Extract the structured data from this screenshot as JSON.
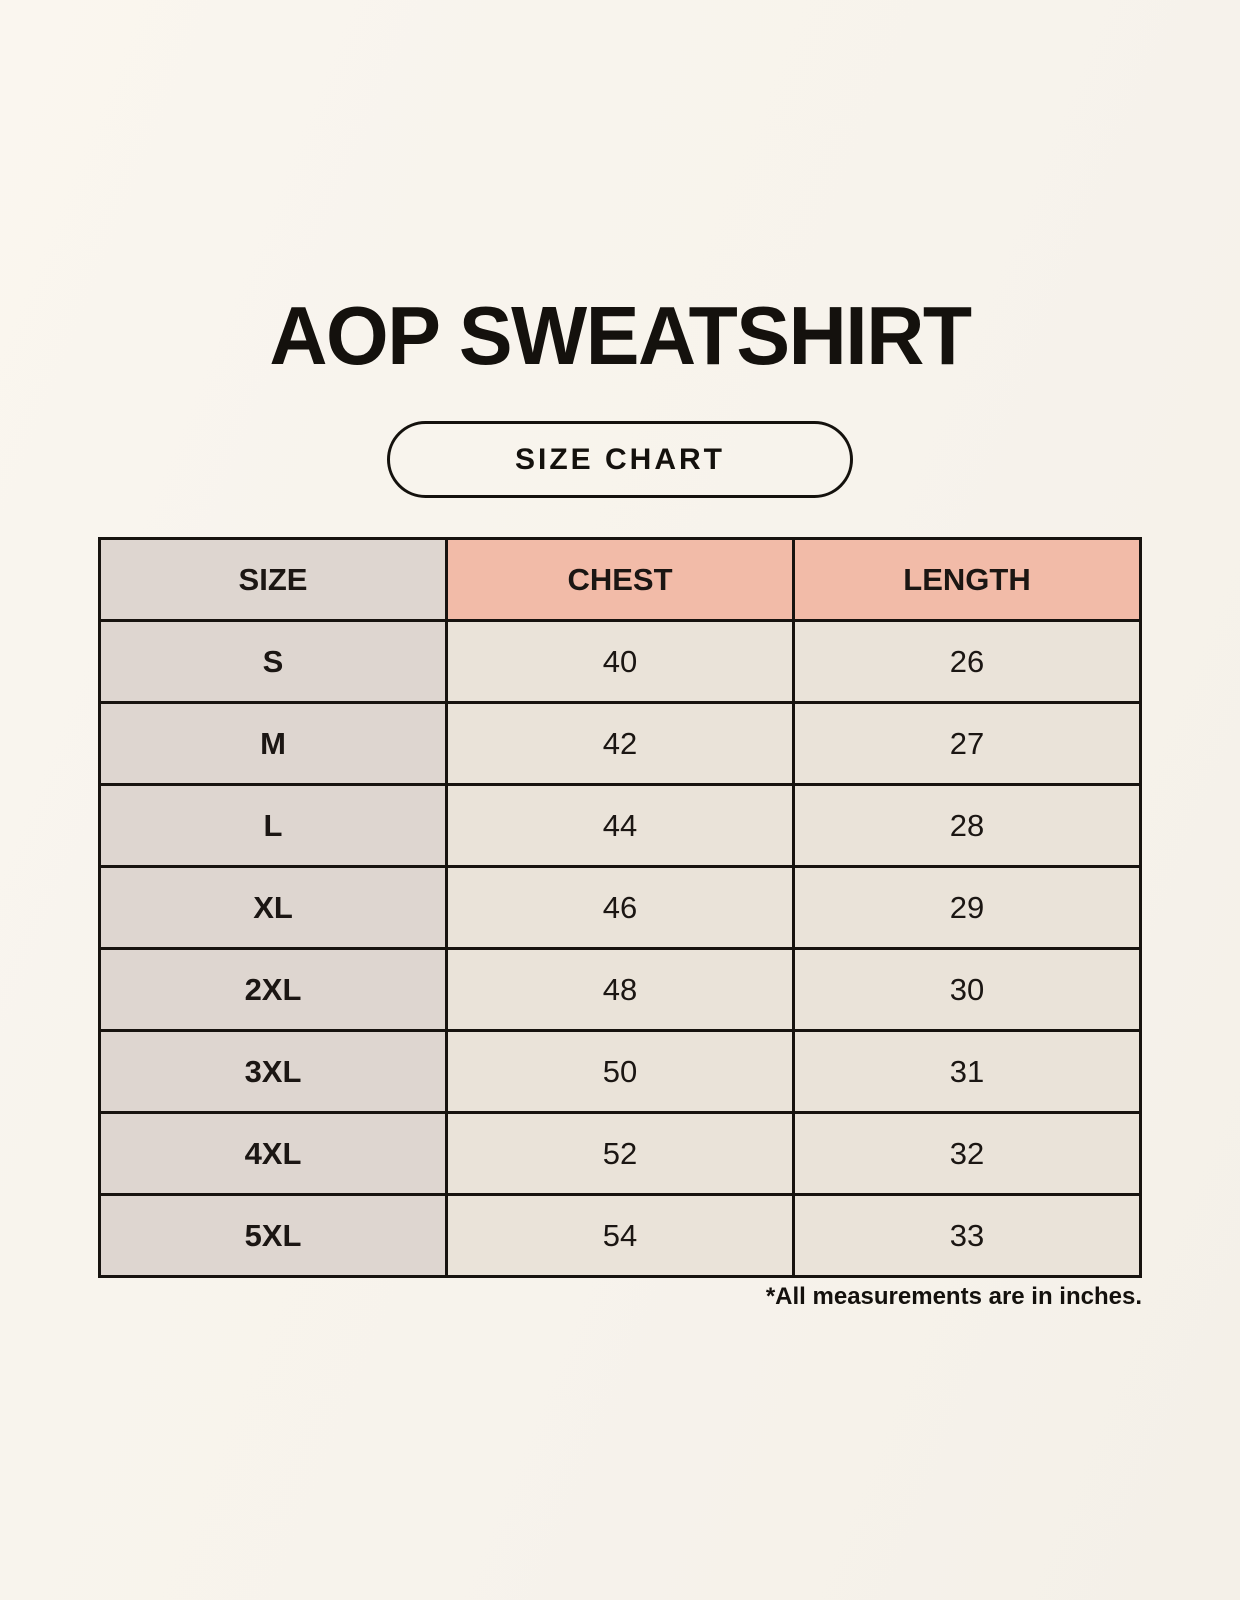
{
  "page": {
    "title": "AOP SWEATSHIRT",
    "button_label": "SIZE CHART",
    "footnote": "*All measurements are in inches."
  },
  "chart_data": {
    "type": "table",
    "title": "AOP SWEATSHIRT",
    "subtitle_badge": "SIZE CHART",
    "columns": [
      "SIZE",
      "CHEST",
      "LENGTH"
    ],
    "rows": [
      [
        "S",
        40,
        26
      ],
      [
        "M",
        42,
        27
      ],
      [
        "L",
        44,
        28
      ],
      [
        "XL",
        46,
        29
      ],
      [
        "2XL",
        48,
        30
      ],
      [
        "3XL",
        50,
        31
      ],
      [
        "4XL",
        52,
        32
      ],
      [
        "5XL",
        54,
        33
      ]
    ],
    "units": "inches",
    "footnote": "*All measurements are in inches."
  },
  "colors": {
    "background": "#f8f4ed",
    "size_column_bg": "#ded6d0",
    "measure_header_bg": "#f2bba8",
    "data_cell_bg": "#eae3d9",
    "border": "#17130f",
    "text": "#14110d"
  }
}
